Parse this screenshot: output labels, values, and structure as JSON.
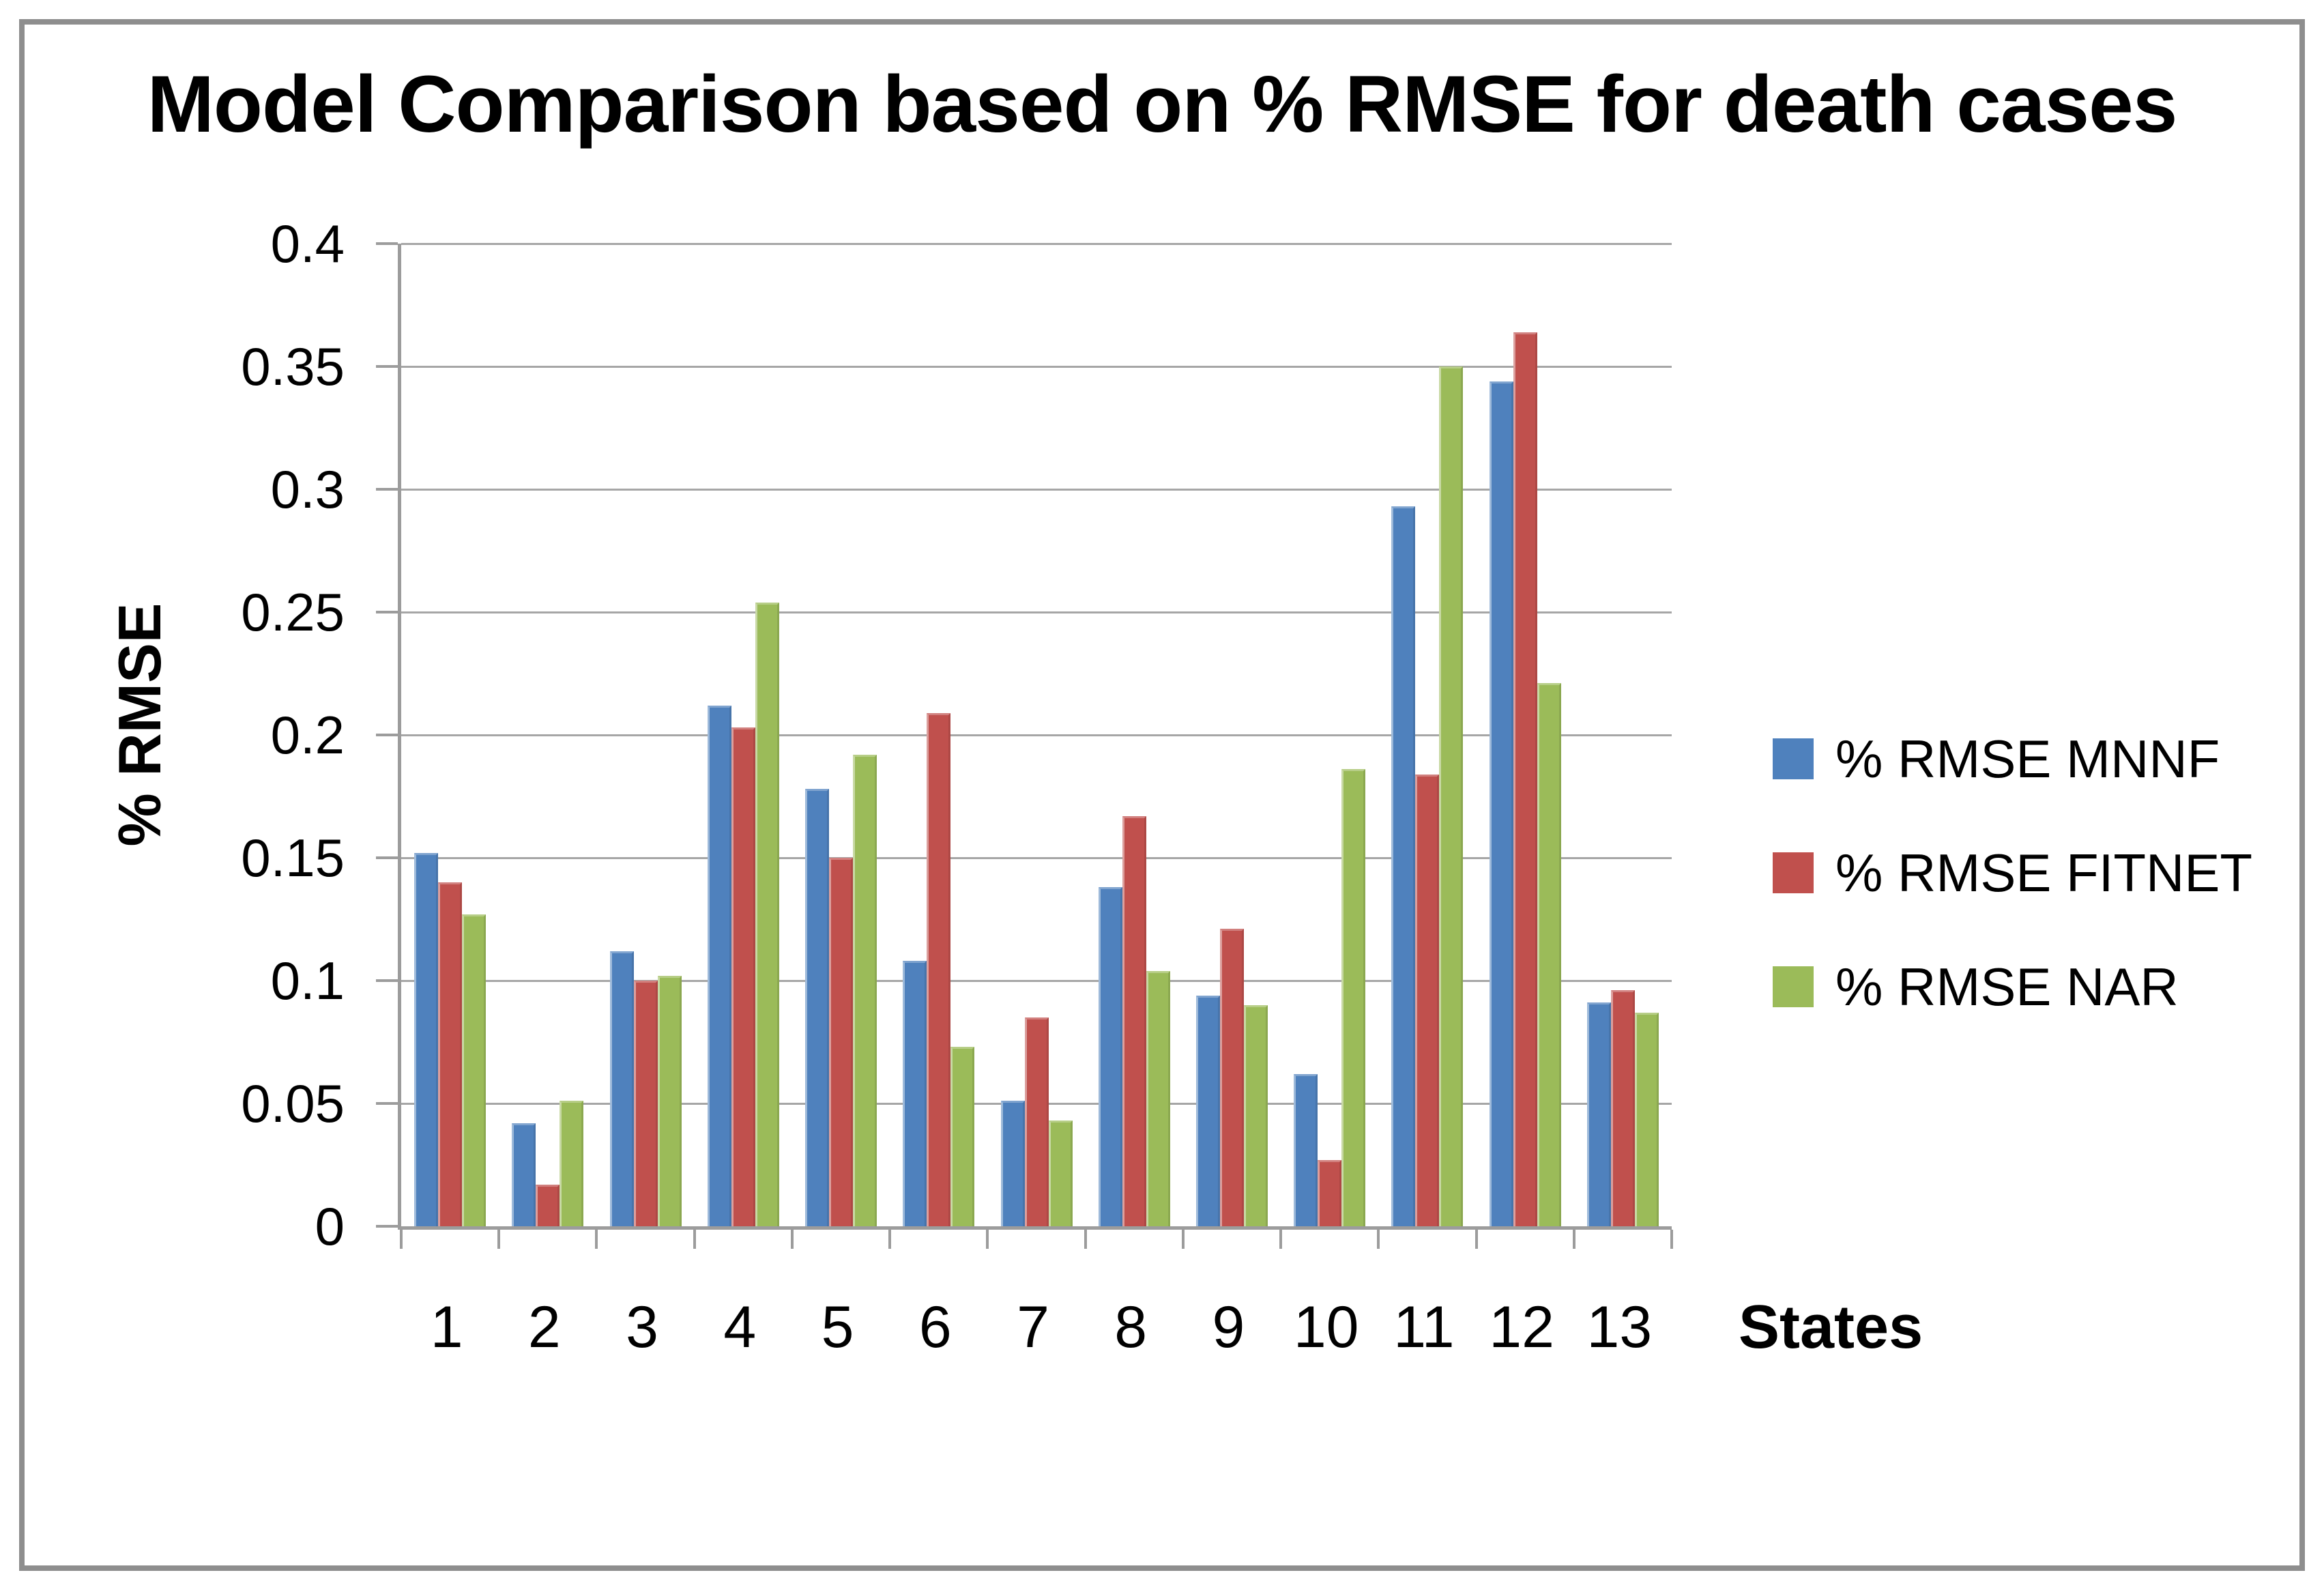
{
  "chart_data": {
    "type": "bar",
    "title": "Model Comparison based on % RMSE for death cases",
    "ylabel": "% RMSE",
    "xlabel": "States",
    "categories": [
      "1",
      "2",
      "3",
      "4",
      "5",
      "6",
      "7",
      "8",
      "9",
      "10",
      "11",
      "12",
      "13"
    ],
    "series": [
      {
        "name": "% RMSE MNNF",
        "color": "#4F81BD",
        "values": [
          0.152,
          0.042,
          0.112,
          0.212,
          0.178,
          0.108,
          0.051,
          0.138,
          0.094,
          0.062,
          0.293,
          0.344,
          0.091
        ]
      },
      {
        "name": "% RMSE FITNET",
        "color": "#C0504D",
        "values": [
          0.14,
          0.017,
          0.1,
          0.203,
          0.15,
          0.209,
          0.085,
          0.167,
          0.121,
          0.027,
          0.184,
          0.364,
          0.096
        ]
      },
      {
        "name": "% RMSE NAR",
        "color": "#9BBB59",
        "values": [
          0.127,
          0.051,
          0.102,
          0.254,
          0.192,
          0.073,
          0.043,
          0.104,
          0.09,
          0.186,
          0.35,
          0.221,
          0.087
        ]
      }
    ],
    "ylim": [
      0,
      0.4
    ],
    "ytick_labels": [
      "0",
      "0.05",
      "0.1",
      "0.15",
      "0.2",
      "0.25",
      "0.3",
      "0.35",
      "0.4"
    ],
    "grid": "horizontal",
    "legend_position": "right"
  },
  "style": {
    "frame_border_color": "#8e8e8e",
    "axis_line_color": "#9c9c9c",
    "gridline_color": "#a6a6a6",
    "text_color": "#000000",
    "background": "#ffffff"
  }
}
